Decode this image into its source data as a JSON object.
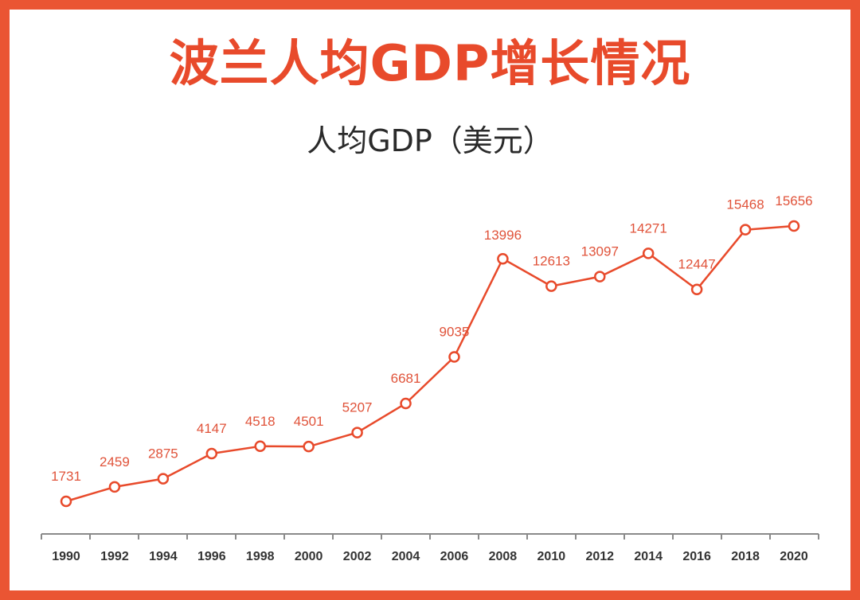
{
  "title": "波兰人均GDP增长情况",
  "chart_data": {
    "type": "line",
    "title": "人均GDP（美元）",
    "xlabel": "",
    "ylabel": "",
    "x": [
      "1990",
      "1992",
      "1994",
      "1996",
      "1998",
      "2000",
      "2002",
      "2004",
      "2006",
      "2008",
      "2010",
      "2012",
      "2014",
      "2016",
      "2018",
      "2020"
    ],
    "series": [
      {
        "values": [
          1731,
          2459,
          2875,
          4147,
          4518,
          4501,
          5207,
          6681,
          9035,
          13996,
          12613,
          13097,
          14271,
          12447,
          15468,
          15656
        ]
      }
    ],
    "ylim": [
      0,
      16500
    ],
    "grid": false,
    "legend": "none"
  },
  "colors": {
    "accent": "#e84a2b",
    "border": "#ea5533",
    "axis": "#8a8a8a",
    "text": "#333333"
  }
}
